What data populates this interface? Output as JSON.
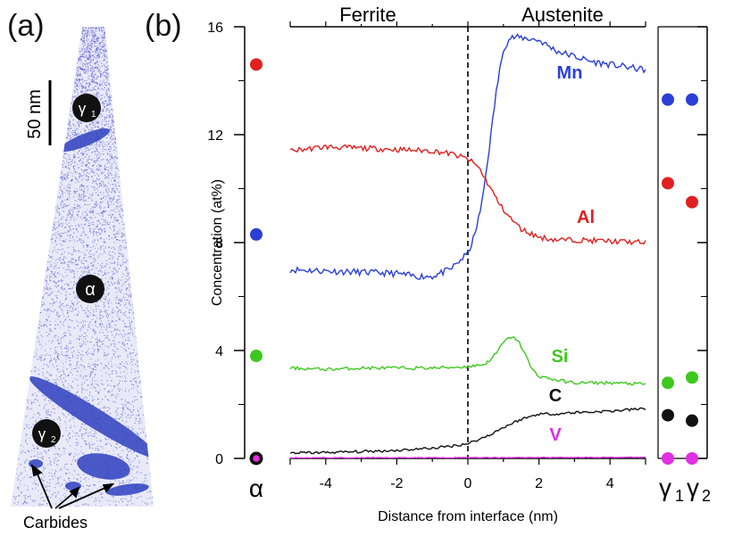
{
  "panel_a": {
    "label": "(a)",
    "scale_bar": "50 nm",
    "phase_alpha": "α",
    "phase_gamma1_base": "γ",
    "phase_gamma1_sub": "1",
    "phase_gamma2_base": "γ",
    "phase_gamma2_sub": "2",
    "carbides_label": "Carbides",
    "point_color": "#5a5fd0",
    "precipitate_color": "#2f3fc0"
  },
  "panel_b": {
    "label": "(b)",
    "region_left": "Ferrite",
    "region_right": "Austenite",
    "alpha_label": "α",
    "gamma1_base": "γ",
    "gamma1_sub": "1",
    "gamma2_base": "γ",
    "gamma2_sub": "2"
  },
  "chart_data": {
    "type": "line",
    "title": "",
    "xlabel": "Distance from interface (nm)",
    "ylabel": "Concentration (at%)",
    "xlim": [
      -5,
      5
    ],
    "ylim": [
      0,
      16
    ],
    "xticks": [
      -4,
      -2,
      0,
      2,
      4
    ],
    "yticks": [
      0,
      4,
      8,
      12,
      16
    ],
    "interface_x": 0,
    "series": [
      {
        "name": "Mn",
        "color": "#2a3fd6",
        "x": [
          -5,
          -4,
          -3,
          -2,
          -1.5,
          -1,
          -0.5,
          0,
          0.2,
          0.4,
          0.6,
          0.8,
          1.0,
          1.2,
          1.5,
          2,
          2.5,
          3,
          3.5,
          4,
          4.5,
          5
        ],
        "y": [
          7.0,
          6.95,
          6.9,
          6.85,
          6.75,
          6.75,
          7.0,
          7.6,
          8.3,
          9.5,
          11.5,
          13.6,
          15.2,
          15.6,
          15.6,
          15.5,
          15.1,
          14.9,
          14.7,
          14.6,
          14.5,
          14.4
        ]
      },
      {
        "name": "Al",
        "color": "#e02020",
        "x": [
          -5,
          -4,
          -3,
          -2,
          -1,
          -0.5,
          0,
          0.3,
          0.6,
          0.9,
          1.2,
          1.5,
          2,
          2.5,
          3,
          4,
          5
        ],
        "y": [
          11.4,
          11.55,
          11.5,
          11.45,
          11.4,
          11.3,
          11.1,
          10.8,
          10.1,
          9.4,
          8.9,
          8.5,
          8.2,
          8.1,
          8.1,
          8.05,
          8.0
        ]
      },
      {
        "name": "Si",
        "color": "#3ec81e",
        "x": [
          -5,
          -4,
          -3,
          -2,
          -1,
          0,
          0.5,
          0.8,
          1.0,
          1.2,
          1.4,
          1.6,
          1.8,
          2.0,
          2.5,
          3,
          4,
          5
        ],
        "y": [
          3.35,
          3.3,
          3.35,
          3.35,
          3.35,
          3.4,
          3.5,
          3.9,
          4.3,
          4.5,
          4.4,
          3.9,
          3.3,
          3.05,
          2.9,
          2.8,
          2.8,
          2.75
        ]
      },
      {
        "name": "C",
        "color": "#111111",
        "x": [
          -5,
          -4,
          -3,
          -2,
          -1,
          -0.5,
          0,
          0.5,
          1.0,
          1.5,
          2.0,
          2.5,
          3,
          4,
          5
        ],
        "y": [
          0.2,
          0.22,
          0.25,
          0.3,
          0.38,
          0.45,
          0.55,
          0.8,
          1.15,
          1.45,
          1.65,
          1.65,
          1.7,
          1.75,
          1.85
        ]
      },
      {
        "name": "V",
        "color": "#e030e0",
        "x": [
          -5,
          0,
          5
        ],
        "y": [
          0.02,
          0.03,
          0.04
        ]
      }
    ],
    "bulk_points": {
      "alpha": [
        {
          "element": "Al",
          "value": 14.6,
          "color": "#e02020"
        },
        {
          "element": "Mn",
          "value": 8.3,
          "color": "#2a3fd6"
        },
        {
          "element": "Si",
          "value": 3.8,
          "color": "#3ec81e"
        },
        {
          "element": "C",
          "value": 0.0,
          "color": "#111111"
        },
        {
          "element": "V",
          "value": 0.0,
          "color": "#e030e0"
        }
      ],
      "gamma1": [
        {
          "element": "Mn",
          "value": 13.3,
          "color": "#2a3fd6"
        },
        {
          "element": "Al",
          "value": 10.2,
          "color": "#e02020"
        },
        {
          "element": "Si",
          "value": 2.8,
          "color": "#3ec81e"
        },
        {
          "element": "C",
          "value": 1.6,
          "color": "#111111"
        },
        {
          "element": "V",
          "value": 0.0,
          "color": "#e030e0"
        }
      ],
      "gamma2": [
        {
          "element": "Mn",
          "value": 13.3,
          "color": "#2a3fd6"
        },
        {
          "element": "Al",
          "value": 9.5,
          "color": "#e02020"
        },
        {
          "element": "Si",
          "value": 3.0,
          "color": "#3ec81e"
        },
        {
          "element": "C",
          "value": 1.4,
          "color": "#111111"
        },
        {
          "element": "V",
          "value": 0.0,
          "color": "#e030e0"
        }
      ]
    }
  }
}
